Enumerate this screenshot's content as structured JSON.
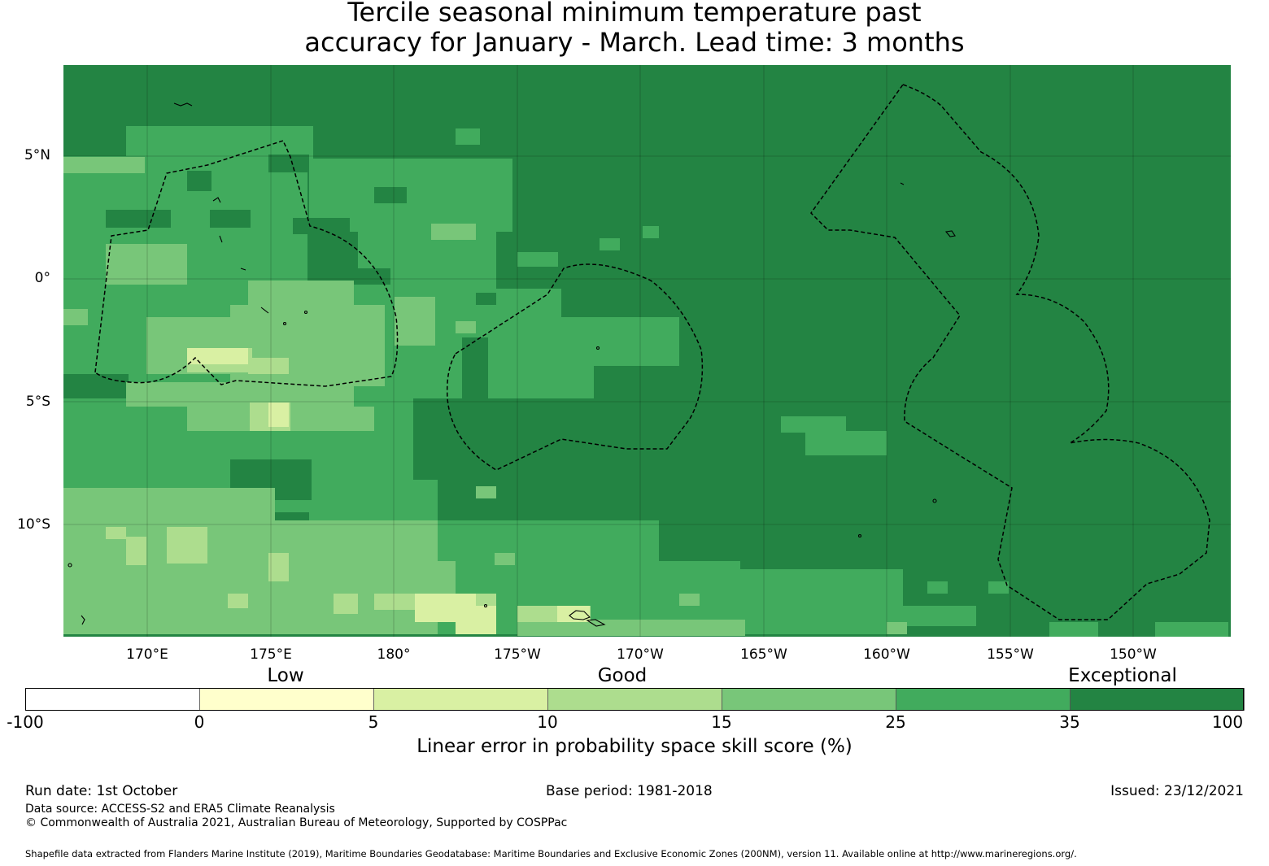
{
  "title": {
    "line1": "Tercile seasonal minimum temperature past",
    "line2": "accuracy for January - March. Lead time: 3 months"
  },
  "map": {
    "lat_labels": [
      "5°N",
      "0°",
      "5°S",
      "10°S"
    ],
    "lon_labels": [
      "170°E",
      "175°E",
      "180°",
      "175°W",
      "170°W",
      "165°W",
      "160°W",
      "155°W",
      "150°W"
    ],
    "colors": {
      "c1": "#ffffcc",
      "c2": "#d9f0a3",
      "c3": "#addd8e",
      "c4": "#78c679",
      "c5": "#41ab5d",
      "c6": "#238443"
    }
  },
  "colorbar": {
    "categories": [
      "Low",
      "Good",
      "Exceptional"
    ],
    "ticks": [
      "-100",
      "0",
      "5",
      "10",
      "15",
      "25",
      "35",
      "100"
    ],
    "colors": [
      "#ffffff",
      "#ffffcc",
      "#d9f0a3",
      "#addd8e",
      "#78c679",
      "#41ab5d",
      "#238443"
    ],
    "label": "Linear error in probability space skill score (%)"
  },
  "footer": {
    "run_date": "Run date: 1st October",
    "base_period": "Base period: 1981-2018",
    "issued": "Issued: 23/12/2021",
    "data_source": "Data source: ACCESS-S2 and ERA5 Climate Reanalysis",
    "copyright": "© Commonwealth of Australia 2021, Australian Bureau of Meteorology, Supported by COSPPac",
    "shapefile": "Shapefile data extracted from Flanders Marine Institute (2019), Maritime Boundaries Geodatabase: Maritime Boundaries and Exclusive Economic Zones (200NM), version 11. Available online at http://www.marineregions.org/."
  }
}
